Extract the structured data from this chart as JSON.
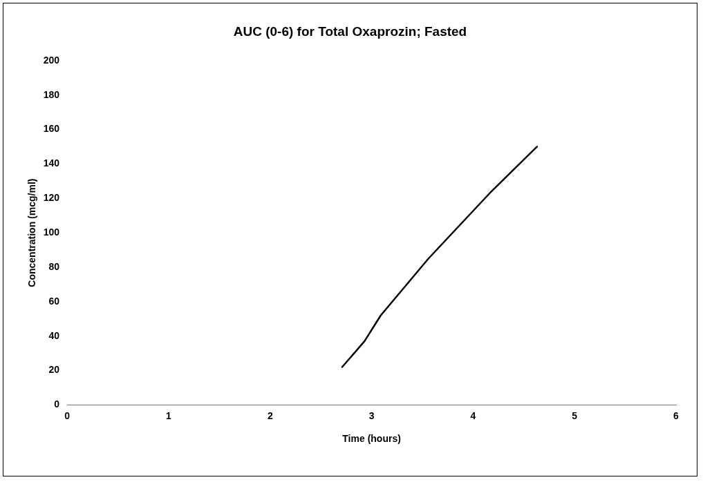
{
  "chart_data": {
    "type": "line",
    "title": "AUC (0-6) for Total Oxaprozin; Fasted",
    "xlabel": "Time (hours)",
    "ylabel": "Concentration (mcg/ml)",
    "x": [
      2.71,
      2.93,
      3.09,
      3.56,
      4.18,
      4.63
    ],
    "series": [
      {
        "color": "#000000",
        "values": [
          22,
          37,
          52,
          85,
          124,
          150
        ]
      }
    ],
    "xlim": [
      0,
      6
    ],
    "xticks": [
      0,
      1,
      2,
      3,
      4,
      5,
      6
    ],
    "ylim": [
      0,
      200
    ],
    "yticks": [
      0,
      20,
      40,
      60,
      80,
      100,
      120,
      140,
      160,
      180,
      200
    ],
    "grid": false,
    "legend": false,
    "marker": "none",
    "line_style": "solid"
  }
}
